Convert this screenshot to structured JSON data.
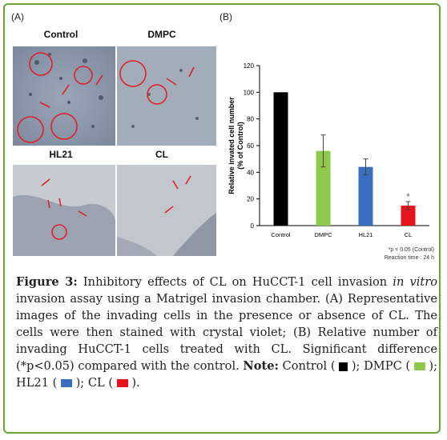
{
  "panel_a_label": "(A)",
  "panel_b_label": "(B)",
  "micrographs": [
    {
      "label": "Control"
    },
    {
      "label": "DMPC"
    },
    {
      "label": "HL21"
    },
    {
      "label": "CL"
    }
  ],
  "chart_data": {
    "type": "bar",
    "categories": [
      "Control",
      "DMPC",
      "HL21",
      "CL"
    ],
    "values": [
      100,
      56,
      44,
      15
    ],
    "errors": [
      0,
      12,
      6,
      3
    ],
    "colors": [
      "#000000",
      "#8fc94a",
      "#3a6fc0",
      "#e8141c"
    ],
    "ylabel_line1": "Relative invated cell number",
    "ylabel_line2": "(% of Control)",
    "ylim": [
      0,
      120
    ],
    "yticks": [
      "0",
      "20",
      "40",
      "60",
      "80",
      "100",
      "120"
    ],
    "annotation_star": "*",
    "footnote_line1": "*p < 0.05 (Control)",
    "footnote_line2": "Reaction time : 24 h"
  },
  "caption": {
    "figure_label": "Figure 3:",
    "text1": " Inhibitory effects of CL on HuCCT-1 cell invasion ",
    "in_vitro": "in vitro",
    "text2": " invasion assay using a Matrigel invasion chamber. (A) Representative images of the invading cells in the presence or absence of CL. The cells were then stained with crystal violet; (B) Relative number of invading HuCCT-1 cells treated with CL. Significant difference (*p<0.05) compared with the control. ",
    "note_label": "Note:",
    "legend_control": " Control ( ",
    "legend_dmpc": " ); DMPC ( ",
    "legend_hl21": " ); HL21 ( ",
    "legend_cl": " ); CL ( ",
    "legend_end": " )."
  }
}
